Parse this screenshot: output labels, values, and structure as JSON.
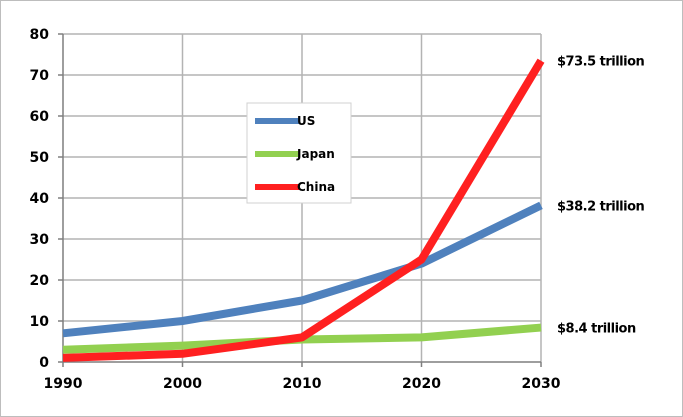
{
  "chart_data": {
    "type": "line",
    "title": "",
    "xlabel": "",
    "ylabel": "",
    "x": [
      1990,
      2000,
      2010,
      2020,
      2030
    ],
    "xlim": [
      1990,
      2030
    ],
    "ylim": [
      0,
      80
    ],
    "x_ticks": [
      "1990",
      "2000",
      "2010",
      "2020",
      "2030"
    ],
    "y_ticks": [
      "0",
      "10",
      "20",
      "30",
      "40",
      "50",
      "60",
      "70",
      "80"
    ],
    "grid": true,
    "legend_position": "center-left",
    "series": [
      {
        "name": "US",
        "color": "#4f81bd",
        "values": [
          7,
          10,
          15,
          24,
          38.2
        ],
        "end_label": "$38.2 trillion"
      },
      {
        "name": "Japan",
        "color": "#92d050",
        "values": [
          3,
          4,
          5.5,
          6,
          8.4
        ],
        "end_label": "$8.4 trillion"
      },
      {
        "name": "China",
        "color": "#ff2020",
        "values": [
          1,
          2,
          6,
          25,
          73.5
        ],
        "end_label": "$73.5 trillion"
      }
    ]
  }
}
